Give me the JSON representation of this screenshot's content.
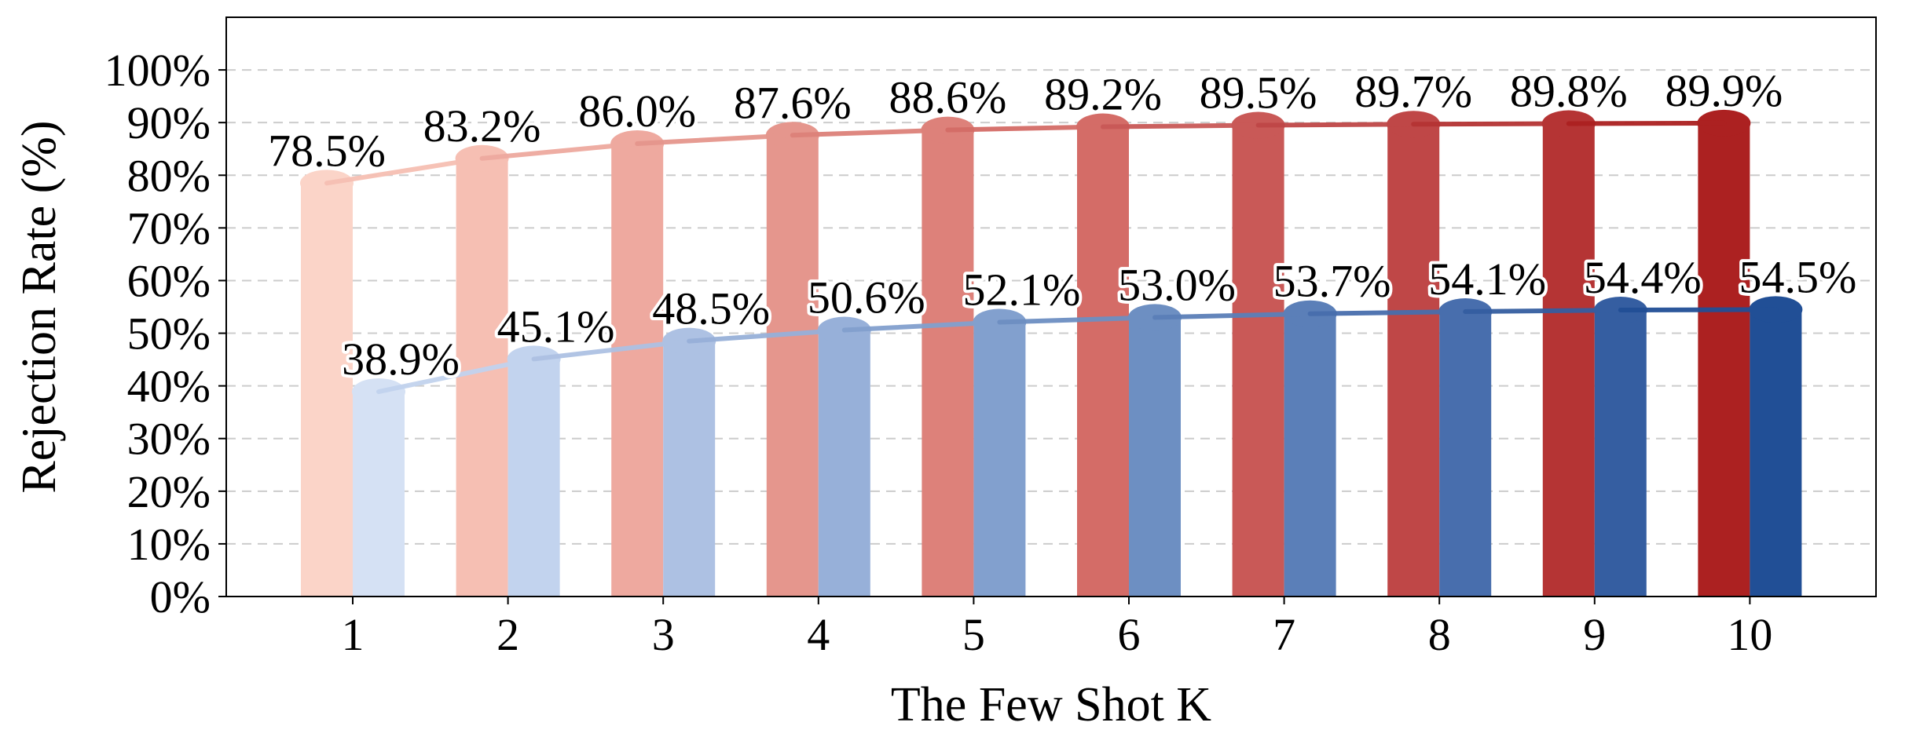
{
  "chart_data": {
    "type": "bar",
    "title": "",
    "xlabel": "The Few Shot K",
    "ylabel": "Rejection Rate (%)",
    "categories": [
      "1",
      "2",
      "3",
      "4",
      "5",
      "6",
      "7",
      "8",
      "9",
      "10"
    ],
    "ylim": [
      0,
      110
    ],
    "yticks": [
      0,
      10,
      20,
      30,
      40,
      50,
      60,
      70,
      80,
      90,
      100
    ],
    "ytick_labels": [
      "0%",
      "10%",
      "20%",
      "30%",
      "40%",
      "50%",
      "60%",
      "70%",
      "80%",
      "90%",
      "100%"
    ],
    "grid": "horizontal-dashed",
    "legend": "none",
    "series": [
      {
        "values": [
          78.5,
          83.2,
          86.0,
          87.6,
          88.6,
          89.2,
          89.5,
          89.7,
          89.8,
          89.9
        ],
        "labels": [
          "78.5%",
          "83.2%",
          "86.0%",
          "87.6%",
          "88.6%",
          "89.2%",
          "89.5%",
          "89.7%",
          "89.8%",
          "89.9%"
        ],
        "colors": [
          "#fbd4c8",
          "#f6bfb3",
          "#eea99f",
          "#e5968d",
          "#dd817a",
          "#d46c67",
          "#c95957",
          "#bf4747",
          "#b53434",
          "#ac2121"
        ]
      },
      {
        "values": [
          38.9,
          45.1,
          48.5,
          50.6,
          52.1,
          53.0,
          53.7,
          54.1,
          54.4,
          54.5
        ],
        "labels": [
          "38.9%",
          "45.1%",
          "48.5%",
          "50.6%",
          "52.1%",
          "53.0%",
          "53.7%",
          "54.1%",
          "54.4%",
          "54.5%"
        ],
        "colors": [
          "#d5e1f4",
          "#c2d3ee",
          "#adc1e3",
          "#97b0d9",
          "#82a0ce",
          "#6d8fc2",
          "#5b7fb8",
          "#486ead",
          "#355ea1",
          "#214f96"
        ]
      }
    ]
  }
}
